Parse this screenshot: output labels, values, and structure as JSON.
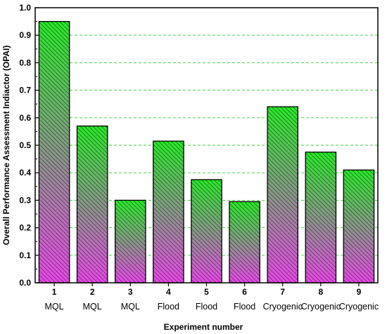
{
  "chart_data": {
    "type": "bar",
    "categories": [
      "1",
      "2",
      "3",
      "4",
      "5",
      "6",
      "7",
      "8",
      "9"
    ],
    "category_sublabels": [
      "MQL",
      "MQL",
      "MQL",
      "Flood",
      "Flood",
      "Flood",
      "Cryogenic",
      "Cryogenic",
      "Cryogenic"
    ],
    "values": [
      0.95,
      0.57,
      0.3,
      0.515,
      0.375,
      0.295,
      0.64,
      0.475,
      0.41
    ],
    "title": "",
    "xlabel": "Experiment number",
    "ylabel": "Overall Performance Assessment Indiactor (OPAI)",
    "ylim": [
      0,
      1.0
    ],
    "yticks": [
      "0.0",
      "0.1",
      "0.2",
      "0.3",
      "0.4",
      "0.5",
      "0.6",
      "0.7",
      "0.8",
      "0.9",
      "1.0"
    ],
    "grid": "horizontal dashed",
    "gridline_color": "#33cc33",
    "bar_fill_top": "#22ee22",
    "bar_fill_bottom": "#ee44ee",
    "bar_hatch": "diagonal lines"
  }
}
